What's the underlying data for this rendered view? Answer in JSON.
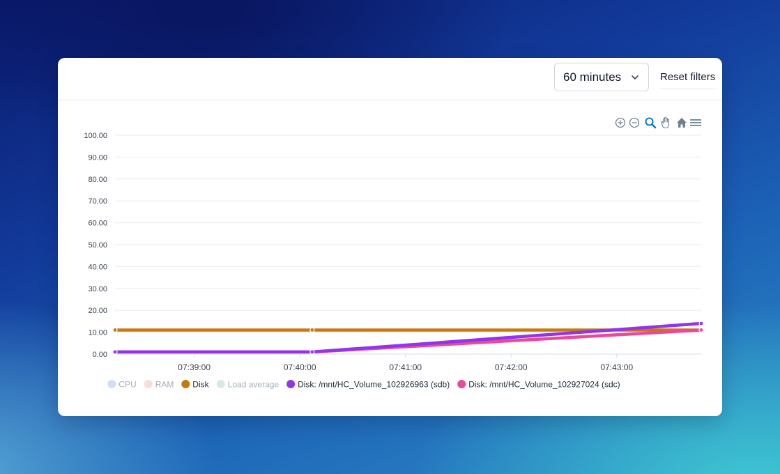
{
  "toolbar": {
    "range_select": {
      "value": "60 minutes"
    },
    "reset_label": "Reset filters"
  },
  "chart_tools": [
    "zoom-in-icon",
    "zoom-out-icon",
    "selection-zoom-icon",
    "pan-hand-icon",
    "home-reset-icon",
    "menu-icon"
  ],
  "colors": {
    "cpu": "#c7d7f7",
    "ram": "#fbd5d5",
    "disk": "#c9780c",
    "load": "#cde9e1",
    "sdb": "#9333ea",
    "sdc": "#ec4899",
    "tool_active": "#0a7bbf",
    "tool": "#6e8192"
  },
  "chart_data": {
    "type": "line",
    "ylim": [
      0,
      100
    ],
    "y_ticks": [
      "0.00",
      "10.00",
      "20.00",
      "30.00",
      "40.00",
      "50.00",
      "60.00",
      "70.00",
      "80.00",
      "90.00",
      "100.00"
    ],
    "x_range": [
      "07:38:15",
      "07:43:48"
    ],
    "x_ticks": [
      "07:39:00",
      "07:40:00",
      "07:41:00",
      "07:42:00",
      "07:43:00"
    ],
    "grid": true,
    "legend_position": "bottom",
    "series": [
      {
        "name": "CPU",
        "key": "cpu",
        "hidden": true,
        "points": []
      },
      {
        "name": "RAM",
        "key": "ram",
        "hidden": true,
        "points": []
      },
      {
        "name": "Disk",
        "key": "disk",
        "hidden": false,
        "points": [
          [
            "07:38:15",
            11.0
          ],
          [
            "07:40:07",
            11.0
          ],
          [
            "07:43:48",
            11.0
          ]
        ]
      },
      {
        "name": "Load average",
        "key": "load",
        "hidden": true,
        "points": []
      },
      {
        "name": "Disk: /mnt/HC_Volume_102926963 (sdb)",
        "key": "sdb",
        "hidden": false,
        "points": [
          [
            "07:38:15",
            1.0
          ],
          [
            "07:40:07",
            1.0
          ],
          [
            "07:43:48",
            14.0
          ]
        ]
      },
      {
        "name": "Disk: /mnt/HC_Volume_102927024 (sdc)",
        "key": "sdc",
        "hidden": false,
        "points": [
          [
            "07:38:15",
            1.0
          ],
          [
            "07:40:07",
            1.0
          ],
          [
            "07:43:48",
            11.0
          ]
        ]
      }
    ]
  }
}
